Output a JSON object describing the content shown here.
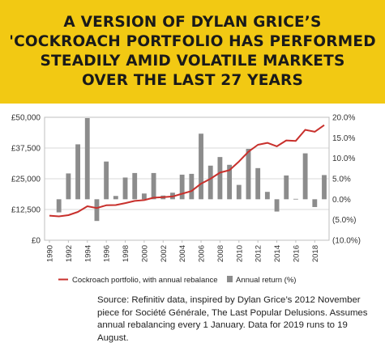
{
  "header": {
    "title_lines": [
      "A VERSION OF DYLAN GRICE’S",
      "'COCKROACH PORTFOLIO HAS PERFORMED",
      "STEADILY AMID VOLATILE MARKETS",
      "OVER THE LAST 27 YEARS"
    ],
    "background_color": "#f2c913"
  },
  "footer": {
    "source_text": "Source: Refinitiv data, inspired by Dylan Grice’s 2012 November piece for Société Générale, The Last Popular Delusions. Assumes annual rebalancing every 1 January. Data for 2019 runs to 19 August."
  },
  "chart_data": {
    "type": "bar",
    "title": "",
    "xlabel": "",
    "years": [
      1990,
      1991,
      1992,
      1993,
      1994,
      1995,
      1996,
      1997,
      1998,
      1999,
      2000,
      2001,
      2002,
      2003,
      2004,
      2005,
      2006,
      2007,
      2008,
      2009,
      2010,
      2011,
      2012,
      2013,
      2014,
      2015,
      2016,
      2017,
      2018,
      2019
    ],
    "x_tick_labels": [
      "1990",
      "1992",
      "1994",
      "1996",
      "1998",
      "2000",
      "2002",
      "2004",
      "2006",
      "2008",
      "2010",
      "2012",
      "2014",
      "2016",
      "2018"
    ],
    "left_axis": {
      "ylim": [
        0,
        50000
      ],
      "tick_values": [
        0,
        12500,
        25000,
        37500,
        50000
      ],
      "tick_labels": [
        "£0",
        "£12,500",
        "£25,000",
        "£37,500",
        "£50,000"
      ]
    },
    "right_axis": {
      "ylim": [
        -10,
        20
      ],
      "tick_values": [
        -10,
        -5,
        0,
        5,
        10,
        15,
        20
      ],
      "tick_labels": [
        "(10.0%)",
        "(5.0%)",
        "0.0%",
        "5.0%",
        "10.0%",
        "15.0%",
        "20.0%"
      ]
    },
    "series": [
      {
        "name": "Annual return (%)",
        "type": "bar",
        "axis": "right",
        "color": "#8c8c8c",
        "x": [
          1991,
          1992,
          1993,
          1994,
          1995,
          1996,
          1997,
          1998,
          1999,
          2000,
          2001,
          2002,
          2003,
          2004,
          2005,
          2006,
          2007,
          2008,
          2009,
          2010,
          2011,
          2012,
          2013,
          2014,
          2015,
          2016,
          2017,
          2018,
          2019
        ],
        "values": [
          -3.2,
          6.3,
          13.4,
          19.8,
          -5.3,
          9.2,
          0.8,
          5.3,
          6.4,
          1.4,
          6.4,
          0.9,
          1.6,
          6.0,
          6.2,
          16.0,
          8.2,
          10.3,
          8.4,
          3.5,
          12.3,
          7.6,
          1.8,
          -3.0,
          5.8,
          0.1,
          11.2,
          -1.9,
          5.9
        ]
      },
      {
        "name": "Cockroach portfolio, with annual rebalance",
        "type": "line",
        "axis": "left",
        "color": "#c8302c",
        "x": [
          1990,
          1991,
          1992,
          1993,
          1994,
          1995,
          1996,
          1997,
          1998,
          1999,
          2000,
          2001,
          2002,
          2003,
          2004,
          2005,
          2006,
          2007,
          2008,
          2009,
          2010,
          2011,
          2012,
          2013,
          2014,
          2015,
          2016,
          2017,
          2018,
          2019
        ],
        "values": [
          10000,
          9700,
          10200,
          11500,
          13800,
          13100,
          14200,
          14300,
          15100,
          16000,
          16300,
          17300,
          17500,
          17800,
          18900,
          20000,
          23000,
          25000,
          27500,
          28500,
          32000,
          36000,
          38800,
          39600,
          38200,
          40600,
          40400,
          44900,
          44100,
          46800
        ]
      }
    ],
    "grid": "horizontal",
    "legend_position": "bottom"
  }
}
